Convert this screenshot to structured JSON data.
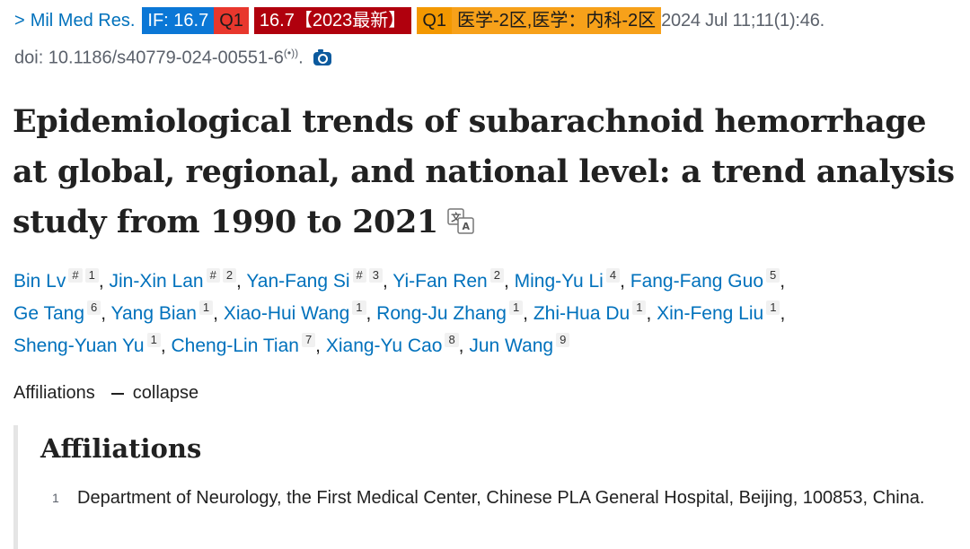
{
  "journal_line": {
    "chevron": ">",
    "journal": "Mil Med Res.",
    "badges": {
      "impact_factor": "IF: 16.7",
      "quartile": "Q1",
      "cas_score": "16.7【2023最新】",
      "cas_quartile": "Q1",
      "division": "医学-2区,医学：内科-2区"
    },
    "date_citation": "2024 Jul 11;11(1):46."
  },
  "doi": "doi: 10.1186/s40779-024-00551-6",
  "doi_superscript": "(•))",
  "title": "Epidemiological trends of subarachnoid hemorrhage at global, regional, and national level: a trend analysis study from 1990 to 2021",
  "authors": [
    {
      "name": "Bin Lv",
      "marks": "#",
      "aff": "1",
      "sep": ", "
    },
    {
      "name": "Jin-Xin Lan",
      "marks": "#",
      "aff": "2",
      "sep": ", "
    },
    {
      "name": "Yan-Fang Si",
      "marks": "#",
      "aff": "3",
      "sep": ", "
    },
    {
      "name": "Yi-Fan Ren",
      "marks": "",
      "aff": "2",
      "sep": ", "
    },
    {
      "name": "Ming-Yu Li",
      "marks": "",
      "aff": "4",
      "sep": ", "
    },
    {
      "name": "Fang-Fang Guo",
      "marks": "",
      "aff": "5",
      "sep": ","
    },
    {
      "name": "Ge Tang",
      "marks": "",
      "aff": "6",
      "sep": ", "
    },
    {
      "name": "Yang Bian",
      "marks": "",
      "aff": "1",
      "sep": ", "
    },
    {
      "name": "Xiao-Hui Wang",
      "marks": "",
      "aff": "1",
      "sep": ", "
    },
    {
      "name": "Rong-Ju Zhang",
      "marks": "",
      "aff": "1",
      "sep": ", "
    },
    {
      "name": "Zhi-Hua Du",
      "marks": "",
      "aff": "1",
      "sep": ", "
    },
    {
      "name": "Xin-Feng Liu",
      "marks": "",
      "aff": "1",
      "sep": ","
    },
    {
      "name": "Sheng-Yuan Yu",
      "marks": "",
      "aff": "1",
      "sep": ", "
    },
    {
      "name": "Cheng-Lin Tian",
      "marks": "",
      "aff": "7",
      "sep": ", "
    },
    {
      "name": "Xiang-Yu Cao",
      "marks": "",
      "aff": "8",
      "sep": ", "
    },
    {
      "name": "Jun Wang",
      "marks": "",
      "aff": "9",
      "sep": ""
    }
  ],
  "affiliations_toggle": {
    "label": "Affiliations",
    "action": "collapse"
  },
  "affiliations": {
    "heading": "Affiliations",
    "items": [
      {
        "num": "1",
        "text": "Department of Neurology, the First Medical Center, Chinese PLA General Hospital, Beijing, 100853, China."
      }
    ]
  },
  "icons": {
    "translate": "translate-icon",
    "camera": "camera-icon",
    "podcast": "broadcast-icon"
  }
}
